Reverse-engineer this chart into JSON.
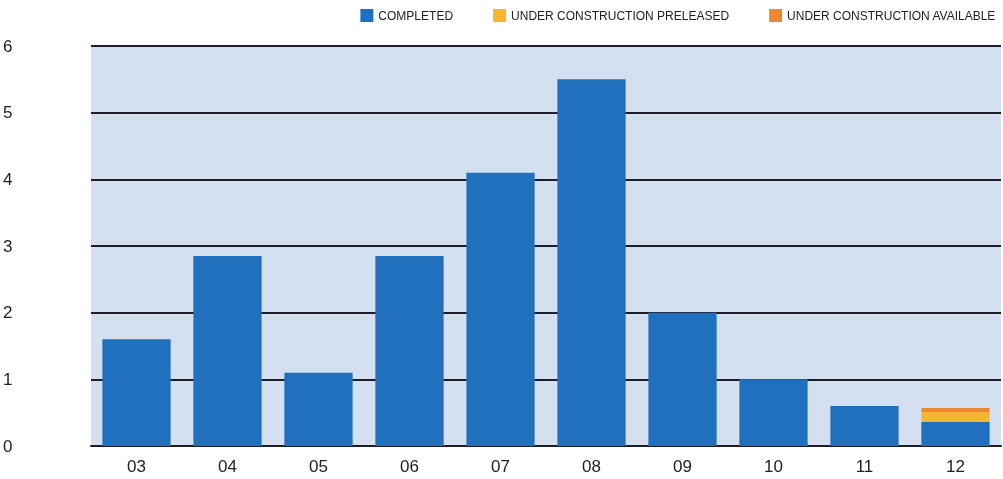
{
  "chart_data": {
    "type": "bar",
    "stacked": true,
    "categories": [
      "03",
      "04",
      "05",
      "06",
      "07",
      "08",
      "09",
      "10",
      "11",
      "12"
    ],
    "series": [
      {
        "name": "COMPLETED",
        "color": "#2170be",
        "values": [
          1.6,
          2.85,
          1.1,
          2.85,
          4.1,
          5.5,
          2.0,
          1.0,
          0.6,
          0.36
        ]
      },
      {
        "name": "UNDER CONSTRUCTION PRELEASED",
        "color": "#f5b731",
        "values": [
          null,
          null,
          null,
          null,
          null,
          null,
          null,
          null,
          null,
          0.15
        ]
      },
      {
        "name": "UNDER CONSTRUCTION AVAILABLE",
        "color": "#ee8632",
        "values": [
          null,
          null,
          null,
          null,
          null,
          null,
          null,
          null,
          null,
          0.06
        ]
      }
    ],
    "ylim": [
      0,
      6
    ],
    "yticks": [
      0,
      1,
      2,
      3,
      4,
      5,
      6
    ],
    "grid": "y",
    "legend": "top right"
  }
}
